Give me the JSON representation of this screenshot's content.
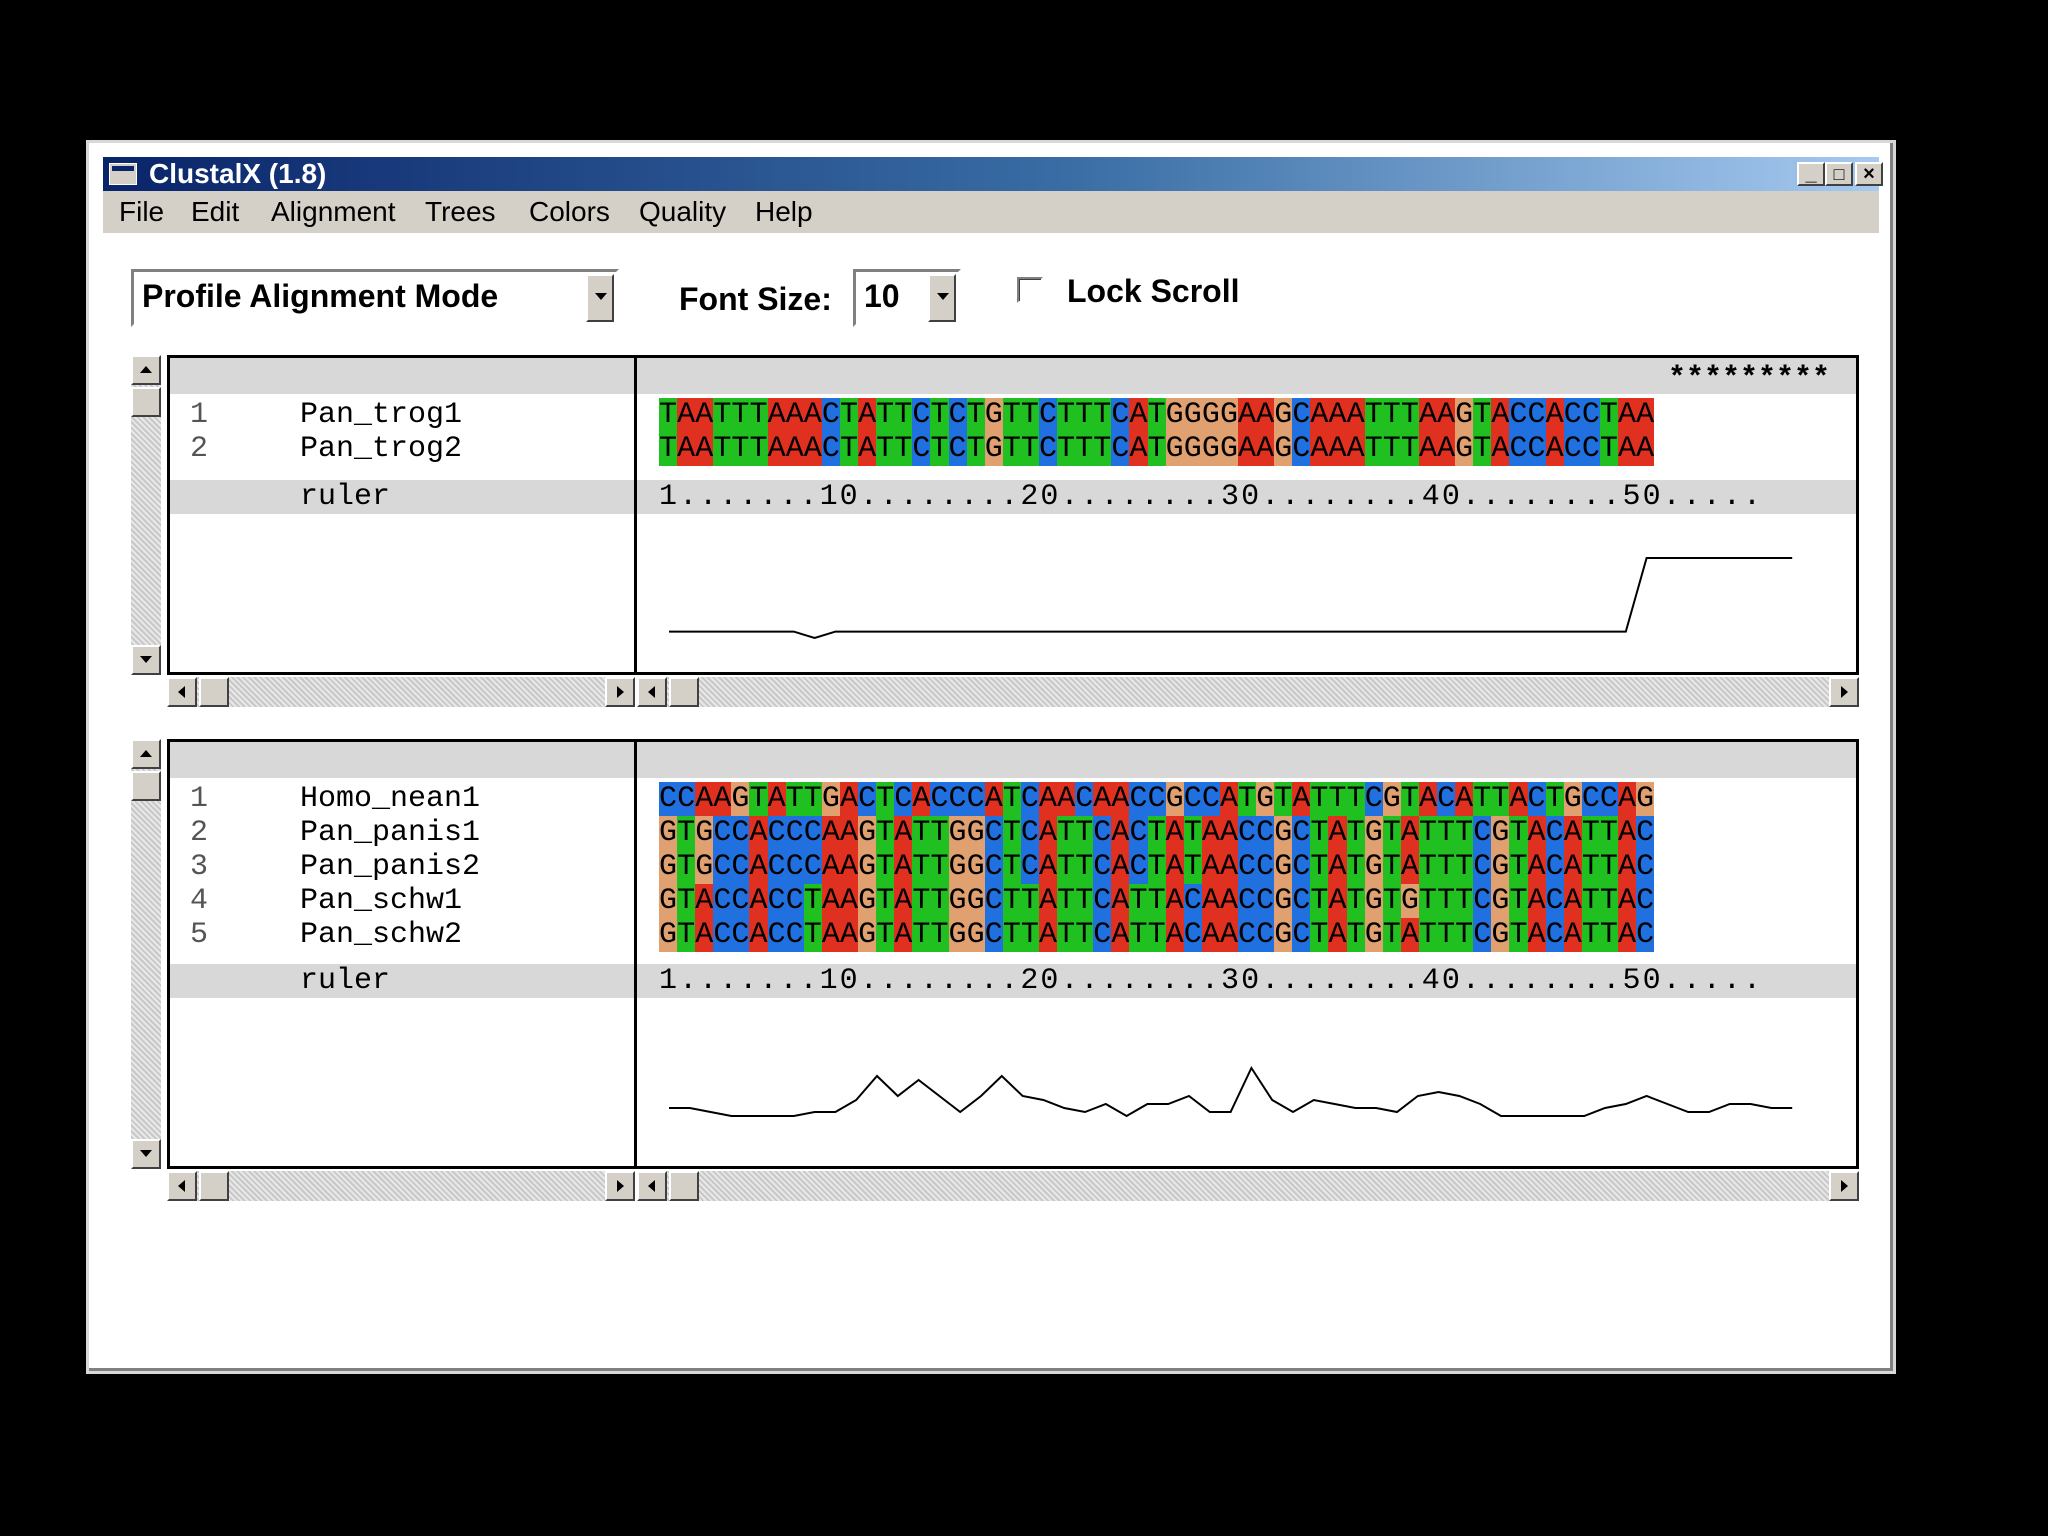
{
  "window": {
    "title": "ClustalX (1.8)",
    "controls": {
      "minimize": "_",
      "maximize": "□",
      "close": "×"
    }
  },
  "menu": [
    "File",
    "Edit",
    "Alignment",
    "Trees",
    "Colors",
    "Quality",
    "Help"
  ],
  "toolbar": {
    "mode_value": "Profile Alignment Mode",
    "font_size_label": "Font Size:",
    "font_size_value": "10",
    "lock_scroll_label": "Lock Scroll",
    "lock_scroll_checked": false
  },
  "colors": {
    "A": "#e03020",
    "T": "#20c020",
    "C": "#2070e0",
    "G": "#e0a070"
  },
  "profile1": {
    "consensus": "*********",
    "sequences": [
      {
        "num": "1",
        "name": "Pan_trog1",
        "seq": "TAATTTAAACTATTCTCTGTTCTTTCATGGGGAAGCAAATTTAAGTACCACCTAA"
      },
      {
        "num": "2",
        "name": "Pan_trog2",
        "seq": "TAATTTAAACTATTCTCTGTTCTTTCATGGGGAAGCAAATTTAAGTACCACCTAA"
      }
    ],
    "ruler_label": "ruler",
    "ruler": "1.......10........20........30........40........50.....",
    "quality": [
      8,
      8,
      8,
      8,
      8,
      8,
      8,
      0,
      8,
      8,
      8,
      8,
      8,
      8,
      8,
      8,
      8,
      8,
      8,
      8,
      8,
      8,
      8,
      8,
      8,
      8,
      8,
      8,
      8,
      8,
      8,
      8,
      8,
      8,
      8,
      8,
      8,
      8,
      8,
      8,
      8,
      8,
      8,
      8,
      8,
      8,
      8,
      100,
      100,
      100,
      100,
      100,
      100,
      100,
      100
    ]
  },
  "profile2": {
    "sequences": [
      {
        "num": "1",
        "name": "Homo_nean1",
        "seq": "CCAAGTATTGACTCACCCATCAACAACCGCCATGTATTTCGTACATTACTGCCAG"
      },
      {
        "num": "2",
        "name": "Pan_panis1",
        "seq": "GTGCCACCCAAGTATTGGCTCATTCACTATAACCGCTATGTATTTCGTACATTAC"
      },
      {
        "num": "3",
        "name": "Pan_panis2",
        "seq": "GTGCCACCCAAGTATTGGCTCATTCACTATAACCGCTATGTATTTCGTACATTAC"
      },
      {
        "num": "4",
        "name": "Pan_schw1",
        "seq": "GTACCACCTAAGTATTGGCTTATTCATTACAACCGCTATGTGTTTCGTACATTAC"
      },
      {
        "num": "5",
        "name": "Pan_schw2",
        "seq": "GTACCACCTAAGTATTGGCTTATTCATTACAACCGCTATGTATTTCGTACATTAC"
      }
    ],
    "ruler_label": "ruler",
    "ruler": "1.......10........20........30........40........50.....",
    "quality": [
      20,
      20,
      15,
      10,
      10,
      10,
      10,
      15,
      15,
      30,
      60,
      35,
      55,
      35,
      15,
      35,
      60,
      35,
      30,
      20,
      15,
      25,
      10,
      25,
      25,
      35,
      15,
      15,
      70,
      30,
      15,
      30,
      25,
      20,
      20,
      15,
      35,
      40,
      35,
      25,
      10,
      10,
      10,
      10,
      10,
      20,
      25,
      35,
      25,
      15,
      15,
      25,
      25,
      20,
      20
    ]
  }
}
